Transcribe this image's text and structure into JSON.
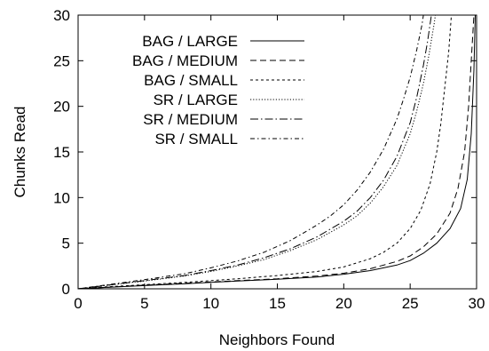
{
  "chart_data": {
    "type": "line",
    "xlabel": "Neighbors Found",
    "ylabel": "Chunks Read",
    "xlim": [
      0,
      30
    ],
    "ylim": [
      0,
      30
    ],
    "xticks": [
      "0",
      "5",
      "10",
      "15",
      "20",
      "25",
      "30"
    ],
    "yticks": [
      "0",
      "5",
      "10",
      "15",
      "20",
      "25",
      "30"
    ],
    "grid": false,
    "legend_position": "top-left",
    "series": [
      {
        "name": "BAG / LARGE",
        "dash": "solid",
        "points": [
          [
            0,
            0
          ],
          [
            2,
            0.15
          ],
          [
            5,
            0.35
          ],
          [
            8,
            0.55
          ],
          [
            10,
            0.7
          ],
          [
            12,
            0.85
          ],
          [
            15,
            1.05
          ],
          [
            18,
            1.3
          ],
          [
            20,
            1.6
          ],
          [
            22,
            2.0
          ],
          [
            24,
            2.6
          ],
          [
            25,
            3.1
          ],
          [
            26,
            3.9
          ],
          [
            27,
            5.0
          ],
          [
            28,
            6.6
          ],
          [
            28.8,
            8.8
          ],
          [
            29.3,
            12
          ],
          [
            29.6,
            17
          ],
          [
            29.8,
            24
          ],
          [
            29.9,
            30
          ]
        ]
      },
      {
        "name": "BAG / MEDIUM",
        "dash": "dashed",
        "points": [
          [
            0,
            0
          ],
          [
            2,
            0.15
          ],
          [
            5,
            0.4
          ],
          [
            8,
            0.6
          ],
          [
            10,
            0.75
          ],
          [
            12,
            0.9
          ],
          [
            15,
            1.1
          ],
          [
            18,
            1.4
          ],
          [
            20,
            1.7
          ],
          [
            22,
            2.2
          ],
          [
            24,
            3.0
          ],
          [
            25,
            3.6
          ],
          [
            26,
            4.6
          ],
          [
            27,
            6.0
          ],
          [
            28,
            8.3
          ],
          [
            28.6,
            11
          ],
          [
            29.1,
            15
          ],
          [
            29.4,
            20
          ],
          [
            29.6,
            25
          ],
          [
            29.8,
            30
          ]
        ]
      },
      {
        "name": "BAG / SMALL",
        "dash": "small-dashed",
        "points": [
          [
            0,
            0
          ],
          [
            2,
            0.2
          ],
          [
            5,
            0.45
          ],
          [
            8,
            0.7
          ],
          [
            10,
            0.9
          ],
          [
            12,
            1.1
          ],
          [
            15,
            1.45
          ],
          [
            18,
            1.9
          ],
          [
            20,
            2.4
          ],
          [
            22,
            3.3
          ],
          [
            23,
            4.0
          ],
          [
            24,
            5.0
          ],
          [
            25,
            6.6
          ],
          [
            25.8,
            8.6
          ],
          [
            26.5,
            11.5
          ],
          [
            27,
            15
          ],
          [
            27.3,
            18
          ],
          [
            27.6,
            22
          ],
          [
            27.9,
            26
          ],
          [
            28.1,
            30
          ]
        ]
      },
      {
        "name": "SR / LARGE",
        "dash": "dotted",
        "points": [
          [
            0,
            0
          ],
          [
            2,
            0.35
          ],
          [
            5,
            0.85
          ],
          [
            8,
            1.4
          ],
          [
            10,
            1.9
          ],
          [
            12,
            2.5
          ],
          [
            14,
            3.2
          ],
          [
            16,
            4.2
          ],
          [
            18,
            5.4
          ],
          [
            20,
            7.0
          ],
          [
            21,
            8.0
          ],
          [
            22,
            9.4
          ],
          [
            23,
            11.2
          ],
          [
            24,
            13.5
          ],
          [
            25,
            17
          ],
          [
            25.5,
            19.5
          ],
          [
            26,
            22.5
          ],
          [
            26.4,
            25.5
          ],
          [
            26.8,
            29
          ],
          [
            27,
            31
          ]
        ]
      },
      {
        "name": "SR / MEDIUM",
        "dash": "dash-dot",
        "points": [
          [
            0,
            0
          ],
          [
            2,
            0.35
          ],
          [
            5,
            0.9
          ],
          [
            8,
            1.45
          ],
          [
            10,
            2.0
          ],
          [
            12,
            2.6
          ],
          [
            14,
            3.4
          ],
          [
            16,
            4.4
          ],
          [
            18,
            5.7
          ],
          [
            20,
            7.4
          ],
          [
            21,
            8.5
          ],
          [
            22,
            10
          ],
          [
            23,
            11.9
          ],
          [
            24,
            14.5
          ],
          [
            25,
            18.2
          ],
          [
            25.5,
            21
          ],
          [
            26,
            24.5
          ],
          [
            26.3,
            27
          ],
          [
            26.6,
            30
          ],
          [
            26.7,
            31
          ]
        ]
      },
      {
        "name": "SR / SMALL",
        "dash": "dash-dot-small",
        "points": [
          [
            0,
            0
          ],
          [
            2,
            0.4
          ],
          [
            5,
            1.0
          ],
          [
            8,
            1.65
          ],
          [
            10,
            2.3
          ],
          [
            12,
            3.05
          ],
          [
            14,
            4.0
          ],
          [
            16,
            5.3
          ],
          [
            18,
            7.0
          ],
          [
            19,
            8.0
          ],
          [
            20,
            9.2
          ],
          [
            21,
            10.8
          ],
          [
            22,
            12.8
          ],
          [
            23,
            15.3
          ],
          [
            24,
            18.6
          ],
          [
            24.5,
            20.8
          ],
          [
            25,
            23.2
          ],
          [
            25.5,
            26.2
          ],
          [
            25.9,
            29
          ],
          [
            26.1,
            31
          ]
        ]
      }
    ]
  }
}
